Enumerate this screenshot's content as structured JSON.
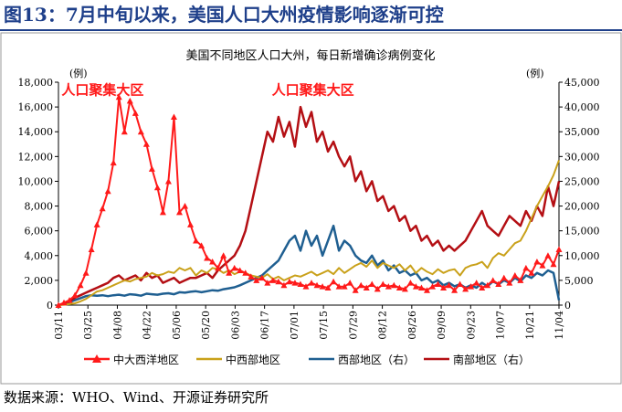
{
  "figure_title": "图13：7月中旬以来，美国人口大州疫情影响逐渐可控",
  "source_text": "数据来源：WHO、Wind、开源证券研究所",
  "colors": {
    "title": "#1e3f8a",
    "northeast": "#ff1a1a",
    "midwest": "#c9a11a",
    "west": "#1f5f91",
    "south": "#b40f14"
  },
  "chart_data": {
    "type": "line",
    "title": "美国不同地区人口大州，每日新增确诊病例变化",
    "left_axis_unit": "(例)",
    "right_axis_unit": "(例)",
    "ylim_left": [
      0,
      18000
    ],
    "ylim_right": [
      0,
      45000
    ],
    "left_ticks": [
      "0",
      "2,000",
      "4,000",
      "6,000",
      "8,000",
      "10,000",
      "12,000",
      "14,000",
      "16,000",
      "18,000"
    ],
    "right_ticks": [
      "0",
      "5,000",
      "10,000",
      "15,000",
      "20,000",
      "25,000",
      "30,000",
      "35,000",
      "40,000",
      "45,000"
    ],
    "x_ticks": [
      "03/11",
      "03/25",
      "04/08",
      "04/22",
      "05/06",
      "05/20",
      "06/03",
      "06/17",
      "07/01",
      "07/15",
      "07/29",
      "08/12",
      "08/26",
      "09/09",
      "09/23",
      "10/07",
      "10/21",
      "11/04"
    ],
    "grid": false,
    "legend_position": "bottom",
    "annotations": [
      {
        "text": "人口聚集大区",
        "x": "04/01",
        "y": 17000
      },
      {
        "text": "人口聚集大区",
        "x": "07/10",
        "y": 17000
      }
    ],
    "series": [
      {
        "name": "中大西洋地区",
        "axis": "left",
        "marker": "triangle",
        "values": [
          0,
          200,
          400,
          800,
          1600,
          2600,
          4500,
          6500,
          7800,
          9200,
          11500,
          16800,
          14000,
          16500,
          15500,
          14000,
          13000,
          11000,
          9500,
          7500,
          10000,
          15200,
          7500,
          8000,
          6500,
          5200,
          4800,
          3800,
          3500,
          3000,
          4000,
          2600,
          3000,
          2800,
          2600,
          2300,
          2000,
          2200,
          1800,
          2000,
          1900,
          1600,
          1900,
          1800,
          1700,
          1500,
          1800,
          1600,
          1500,
          1400,
          1900,
          1500,
          1500,
          1800,
          1200,
          1600,
          1400,
          1700,
          1300,
          1700,
          1500,
          1600,
          1400,
          1300,
          1800,
          1500,
          1400,
          1200,
          1500,
          1700,
          1400,
          1600,
          1200,
          1700,
          1300,
          1500,
          1800,
          1400,
          1600,
          2000,
          1700,
          2200,
          1800,
          2400,
          2000,
          3000,
          2600,
          3500,
          3200,
          4000,
          3300,
          4500
        ]
      },
      {
        "name": "中西部地区",
        "axis": "left",
        "marker": "none",
        "values": [
          0,
          30,
          80,
          150,
          300,
          500,
          800,
          1100,
          1200,
          1400,
          1600,
          1800,
          2000,
          1900,
          2100,
          2200,
          2300,
          2600,
          2400,
          2500,
          2700,
          2600,
          3000,
          2800,
          3000,
          2400,
          2800,
          2600,
          3000,
          2900,
          2600,
          2800,
          2500,
          2700,
          2600,
          2400,
          2300,
          2200,
          2500,
          2100,
          2300,
          2000,
          2200,
          2400,
          2300,
          2500,
          2700,
          2400,
          2600,
          2800,
          2500,
          3000,
          2600,
          2900,
          3200,
          3400,
          3100,
          3600,
          3000,
          3400,
          3200,
          3000,
          3300,
          2800,
          3200,
          2600,
          3000,
          2700,
          2500,
          2900,
          2600,
          2800,
          2900,
          2400,
          3000,
          3200,
          3300,
          3500,
          3000,
          3800,
          4200,
          4000,
          4500,
          5000,
          5200,
          6000,
          7000,
          8000,
          8800,
          9600,
          10500,
          11700
        ]
      },
      {
        "name": "西部地区（右）",
        "axis": "right",
        "marker": "none",
        "values": [
          0,
          200,
          600,
          1000,
          1400,
          1800,
          2000,
          1900,
          2000,
          1800,
          2000,
          2100,
          1900,
          2200,
          2100,
          1900,
          2300,
          2200,
          2100,
          2300,
          2400,
          2200,
          2600,
          2500,
          2700,
          2800,
          2600,
          2800,
          3000,
          2900,
          3200,
          3400,
          3600,
          4000,
          4500,
          5000,
          5500,
          6000,
          7000,
          8000,
          9000,
          11000,
          13000,
          14000,
          11000,
          15000,
          12000,
          14000,
          10000,
          13000,
          16000,
          11000,
          13000,
          12000,
          10000,
          9000,
          8500,
          10000,
          8000,
          9000,
          7000,
          8000,
          6500,
          7000,
          6000,
          6500,
          5000,
          5500,
          4500,
          5000,
          4000,
          4500,
          3800,
          4200,
          3500,
          4000,
          3500,
          4500,
          3800,
          4800,
          4200,
          5000,
          4500,
          5500,
          4800,
          6000,
          5500,
          6500,
          6000,
          7000,
          6500,
          1000
        ]
      },
      {
        "name": "南部地区（右）",
        "axis": "right",
        "marker": "none",
        "values": [
          0,
          300,
          800,
          1500,
          2000,
          2500,
          3000,
          3500,
          4000,
          4500,
          5500,
          6000,
          5000,
          5500,
          6000,
          5000,
          6500,
          5500,
          6000,
          4500,
          5000,
          5500,
          4500,
          5000,
          5500,
          5500,
          6000,
          6500,
          5500,
          7000,
          8000,
          9000,
          10000,
          12000,
          15000,
          20000,
          25000,
          30000,
          35000,
          33000,
          38000,
          34000,
          37000,
          32000,
          40000,
          36000,
          39000,
          33000,
          35000,
          31000,
          33000,
          30000,
          28000,
          30000,
          25000,
          27000,
          23000,
          25000,
          21000,
          22000,
          19000,
          20000,
          17000,
          18000,
          15000,
          16000,
          13000,
          14000,
          12000,
          13000,
          11000,
          12000,
          11000,
          12000,
          13000,
          15000,
          17000,
          19000,
          16000,
          15000,
          14000,
          16000,
          18000,
          17000,
          16000,
          19000,
          17000,
          20000,
          18000,
          24000,
          20000,
          25000
        ]
      }
    ]
  }
}
